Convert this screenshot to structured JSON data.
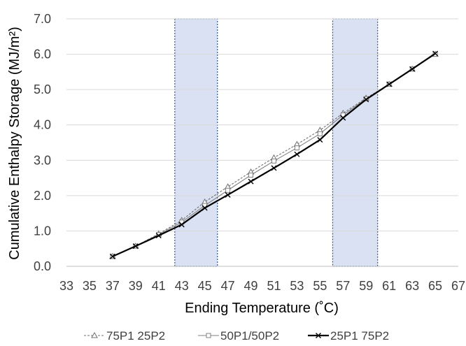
{
  "chart_data": {
    "type": "line",
    "xlabel": "Ending Temperature (˚C)",
    "ylabel": "Cumulative Enthalpy Storage (MJ/m²)",
    "xlim": [
      33,
      67
    ],
    "ylim": [
      0.0,
      7.0
    ],
    "x_ticks": [
      "33",
      "35",
      "37",
      "39",
      "41",
      "43",
      "45",
      "47",
      "49",
      "51",
      "53",
      "55",
      "57",
      "59",
      "61",
      "63",
      "65",
      "67"
    ],
    "y_ticks": [
      "0.0",
      "1.0",
      "2.0",
      "3.0",
      "4.0",
      "5.0",
      "6.0",
      "7.0"
    ],
    "grid": "horizontal",
    "legend_position": "bottom",
    "shaded_ranges": [
      [
        42.4,
        46.1
      ],
      [
        56.1,
        60.0
      ]
    ],
    "shaded_color": "#d9e1f2",
    "x": [
      37,
      39,
      41,
      43,
      45,
      47,
      49,
      51,
      53,
      55,
      57,
      59,
      61,
      63,
      65
    ],
    "series": [
      {
        "name": "75P1 25P2",
        "marker": "triangle",
        "style": "dashed",
        "color": "#707070",
        "values": [
          0.28,
          0.57,
          0.92,
          1.3,
          1.82,
          2.25,
          2.67,
          3.07,
          3.45,
          3.85,
          4.33,
          4.76,
          5.15,
          5.58,
          6.0
        ]
      },
      {
        "name": "50P1/50P2",
        "marker": "square",
        "style": "solid",
        "color": "#808080",
        "values": [
          0.28,
          0.57,
          0.9,
          1.25,
          1.72,
          2.15,
          2.58,
          2.98,
          3.35,
          3.75,
          4.28,
          4.74,
          5.15,
          5.58,
          6.0
        ]
      },
      {
        "name": "25P1 75P2",
        "marker": "x",
        "style": "solid",
        "color": "#000000",
        "values": [
          0.28,
          0.57,
          0.87,
          1.18,
          1.65,
          2.02,
          2.4,
          2.78,
          3.17,
          3.58,
          4.2,
          4.72,
          5.15,
          5.58,
          6.02
        ]
      }
    ]
  }
}
